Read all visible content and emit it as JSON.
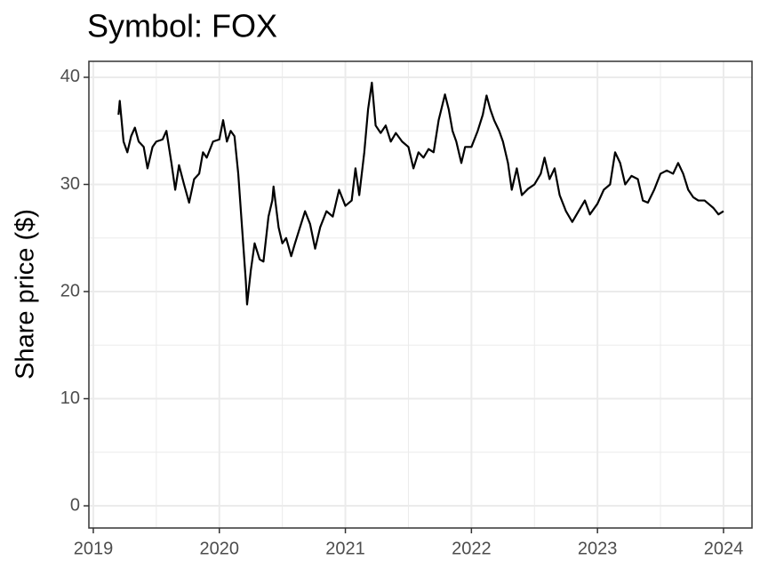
{
  "chart_data": {
    "type": "line",
    "title": "Symbol: FOX",
    "y_label": "Share price ($)",
    "x": [
      2019.2,
      2019.21,
      2019.24,
      2019.27,
      2019.3,
      2019.33,
      2019.36,
      2019.4,
      2019.43,
      2019.47,
      2019.5,
      2019.55,
      2019.58,
      2019.62,
      2019.65,
      2019.68,
      2019.72,
      2019.76,
      2019.8,
      2019.84,
      2019.87,
      2019.9,
      2019.95,
      2020.0,
      2020.03,
      2020.06,
      2020.09,
      2020.12,
      2020.15,
      2020.18,
      2020.21,
      2020.22,
      2020.25,
      2020.28,
      2020.32,
      2020.35,
      2020.39,
      2020.42,
      2020.43,
      2020.47,
      2020.5,
      2020.53,
      2020.57,
      2020.6,
      2020.64,
      2020.68,
      2020.72,
      2020.76,
      2020.8,
      2020.85,
      2020.9,
      2020.95,
      2021.0,
      2021.05,
      2021.08,
      2021.11,
      2021.15,
      2021.18,
      2021.21,
      2021.24,
      2021.28,
      2021.32,
      2021.36,
      2021.4,
      2021.45,
      2021.5,
      2021.54,
      2021.58,
      2021.62,
      2021.66,
      2021.7,
      2021.74,
      2021.79,
      2021.82,
      2021.85,
      2021.88,
      2021.92,
      2021.95,
      2022.0,
      2022.05,
      2022.09,
      2022.12,
      2022.15,
      2022.18,
      2022.22,
      2022.25,
      2022.29,
      2022.32,
      2022.36,
      2022.4,
      2022.45,
      2022.5,
      2022.55,
      2022.58,
      2022.62,
      2022.66,
      2022.7,
      2022.75,
      2022.8,
      2022.85,
      2022.9,
      2022.94,
      2023.0,
      2023.05,
      2023.1,
      2023.14,
      2023.18,
      2023.22,
      2023.27,
      2023.32,
      2023.36,
      2023.4,
      2023.45,
      2023.5,
      2023.55,
      2023.6,
      2023.64,
      2023.68,
      2023.72,
      2023.76,
      2023.8,
      2023.85,
      2023.88,
      2023.92,
      2023.96,
      2024.0
    ],
    "series": [
      {
        "name": "FOX",
        "color": "#000000",
        "values": [
          36.5,
          37.8,
          34,
          33,
          34.5,
          35.3,
          34,
          33.5,
          31.5,
          33.5,
          34,
          34.2,
          35,
          32,
          29.5,
          31.8,
          30,
          28.3,
          30.5,
          31,
          33,
          32.5,
          34,
          34.2,
          36,
          34,
          35,
          34.5,
          31,
          26,
          21,
          18.8,
          22,
          24.5,
          23,
          22.8,
          27,
          28.5,
          29.8,
          26,
          24.5,
          25,
          23.3,
          24.5,
          26,
          27.5,
          26.3,
          24,
          26,
          27.5,
          27,
          29.5,
          28,
          28.5,
          31.5,
          29,
          33,
          37,
          39.5,
          35.5,
          34.8,
          35.5,
          34,
          34.8,
          34,
          33.5,
          31.5,
          33,
          32.5,
          33.3,
          33,
          36,
          38.4,
          37,
          35,
          34,
          32,
          33.5,
          33.5,
          35,
          36.5,
          38.3,
          37,
          36,
          35,
          34,
          32,
          29.5,
          31.5,
          29,
          29.6,
          30,
          31,
          32.5,
          30.5,
          31.5,
          29,
          27.5,
          26.5,
          27.5,
          28.5,
          27.2,
          28.2,
          29.5,
          30,
          33,
          32,
          30,
          30.8,
          30.5,
          28.5,
          28.3,
          29.5,
          31,
          31.3,
          31,
          32,
          31,
          29.5,
          28.8,
          28.5,
          28.5,
          28.2,
          27.8,
          27.2,
          27.5
        ]
      }
    ],
    "xlim": [
      2018.965,
      2024.226
    ],
    "xticks": [
      2019,
      2020,
      2021,
      2022,
      2023,
      2024
    ],
    "ylim": [
      -2.07,
      41.49
    ],
    "yticks": [
      0,
      10,
      20,
      30,
      40
    ],
    "grid": true
  }
}
